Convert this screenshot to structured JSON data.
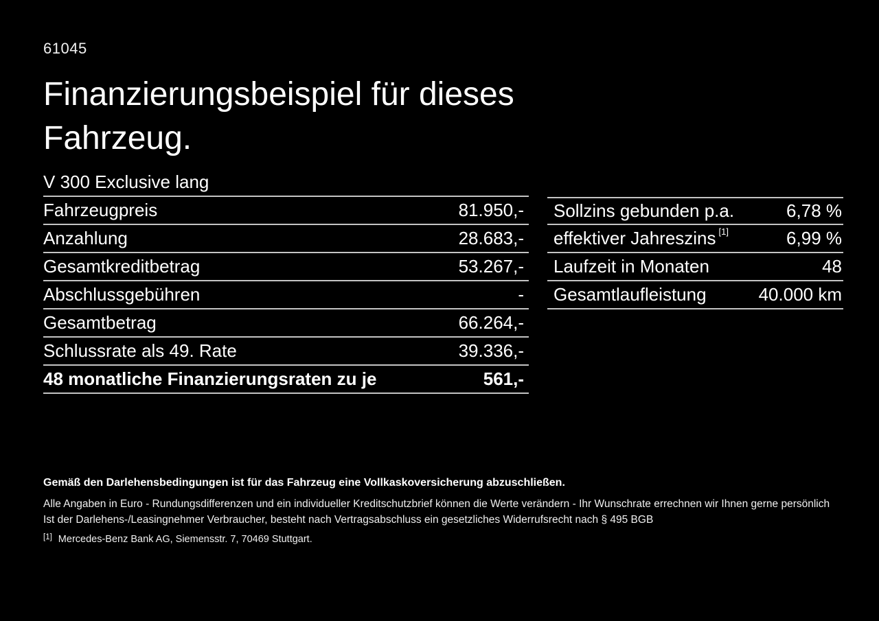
{
  "page": {
    "doc_number": "61045",
    "title_line1": "Finanzierungsbeispiel für dieses",
    "title_line2": "Fahrzeug.",
    "vehicle_model": "V 300 Exclusive lang"
  },
  "financing_table": {
    "rows": [
      {
        "label": "Fahrzeugpreis",
        "value": "81.950,-"
      },
      {
        "label": "Anzahlung",
        "value": "28.683,-"
      },
      {
        "label": "Gesamtkreditbetrag",
        "value": "53.267,-"
      },
      {
        "label": "Abschlussgebühren",
        "value": "-"
      },
      {
        "label": "Gesamtbetrag",
        "value": "66.264,-"
      },
      {
        "label": "Schlussrate als 49. Rate",
        "value": "39.336,-"
      },
      {
        "label": "48 monatliche Finanzierungsraten zu je",
        "value": "561,-"
      }
    ]
  },
  "conditions_table": {
    "rows": [
      {
        "label": "Sollzins gebunden p.a.",
        "value": "6,78 %"
      },
      {
        "label": "effektiver Jahreszins",
        "footnote_ref": "[1]",
        "value": "6,99 %"
      },
      {
        "label": "Laufzeit in Monaten",
        "value": "48"
      },
      {
        "label": "Gesamtlaufleistung",
        "value": "40.000 km"
      }
    ]
  },
  "footer": {
    "insurance_note": "Gemäß den Darlehensbedingungen ist für das Fahrzeug eine Vollkaskoversicherung abzuschließen.",
    "disclaimer_line1": "Alle Angaben in Euro - Rundungsdifferenzen und ein individueller Kreditschutzbrief können die Werte verändern - Ihr Wunschrate errechnen wir Ihnen gerne persönlich",
    "disclaimer_line2": "Ist der Darlehens-/Leasingnehmer Verbraucher, besteht nach Vertragsabschluss ein gesetzliches Widerrufsrecht nach § 495 BGB",
    "footnote_marker": "[1]",
    "footnote_text": "Mercedes-Benz Bank AG, Siemensstr. 7, 70469 Stuttgart."
  },
  "colors": {
    "background": "#000000",
    "text": "#ffffff",
    "divider": "#c4c4c4"
  }
}
